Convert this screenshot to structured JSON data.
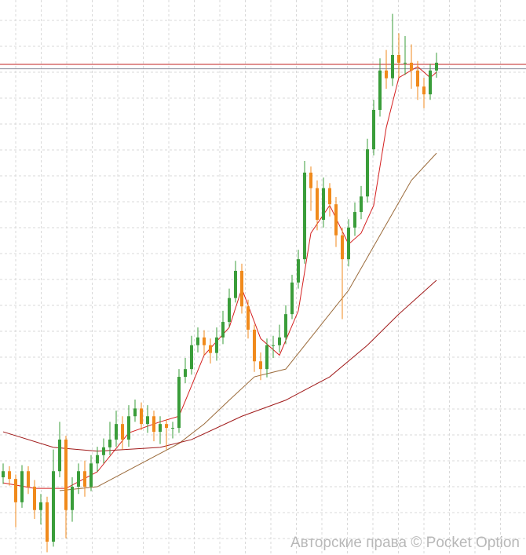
{
  "chart_data": {
    "type": "candlestick",
    "watermark": "Авторские права © Pocket Option",
    "ylim": [
      0,
      100
    ],
    "grid": true,
    "up_color": "#3a9d3a",
    "down_color": "#f08a1c",
    "open": [
      14.0,
      15.1,
      13.7,
      9.5,
      15.1,
      12.3,
      8.1,
      9.5,
      2.4,
      15.1,
      20.8,
      8.1,
      12.3,
      15.1,
      12.3,
      16.5,
      18.0,
      19.4,
      20.8,
      23.6,
      20.8,
      25.0,
      26.4,
      23.6,
      25.0,
      22.2,
      23.6,
      22.9,
      22.9,
      32.1,
      33.5,
      37.8,
      39.2,
      37.8,
      36.4,
      39.2,
      42.0,
      46.3,
      51.2,
      44.8,
      40.6,
      34.9,
      33.5,
      37.8,
      37.8,
      39.2,
      43.4,
      49.1,
      53.3,
      68.9,
      66.1,
      60.4,
      66.1,
      63.2,
      57.6,
      53.3,
      59.0,
      61.8,
      64.6,
      73.1,
      80.2,
      87.3,
      85.9,
      90.1,
      88.7,
      88.7,
      87.3,
      84.4,
      83.0,
      87.3
    ],
    "high": [
      16.5,
      16.0,
      14.5,
      16.2,
      16.0,
      13.5,
      11.0,
      10.5,
      19.0,
      24.0,
      21.5,
      14.0,
      16.5,
      17.0,
      18.0,
      19.5,
      21.0,
      24.0,
      26.0,
      25.0,
      27.0,
      28.0,
      27.5,
      27.0,
      26.0,
      25.0,
      24.5,
      24.0,
      33.5,
      35.5,
      39.5,
      41.0,
      40.5,
      39.0,
      41.0,
      44.0,
      48.0,
      53.0,
      52.5,
      46.0,
      41.5,
      36.5,
      39.0,
      39.5,
      41.5,
      45.0,
      50.5,
      55.0,
      71.0,
      70.0,
      67.5,
      68.0,
      67.0,
      64.5,
      59.0,
      60.5,
      63.5,
      66.5,
      75.0,
      82.0,
      89.5,
      91.0,
      97.5,
      94.0,
      93.5,
      92.0,
      89.0,
      86.0,
      88.5,
      90.5
    ],
    "low": [
      12.8,
      12.5,
      5.0,
      8.5,
      11.0,
      6.5,
      5.5,
      0.5,
      1.5,
      14.0,
      3.0,
      6.0,
      11.0,
      10.5,
      11.5,
      15.0,
      16.5,
      18.0,
      19.5,
      19.0,
      19.5,
      24.0,
      22.5,
      22.0,
      20.5,
      20.0,
      19.0,
      21.0,
      22.0,
      31.0,
      32.5,
      36.5,
      36.0,
      34.5,
      35.0,
      38.0,
      41.0,
      45.5,
      43.5,
      39.0,
      33.0,
      31.5,
      32.0,
      35.5,
      36.5,
      38.0,
      42.5,
      48.0,
      52.5,
      62.0,
      58.5,
      59.0,
      61.0,
      55.5,
      42.5,
      52.0,
      57.5,
      60.5,
      63.5,
      72.0,
      79.0,
      84.0,
      84.5,
      86.0,
      86.5,
      84.0,
      82.0,
      80.5,
      82.0,
      86.0
    ],
    "close": [
      15.1,
      13.7,
      9.5,
      15.1,
      12.3,
      8.1,
      9.5,
      2.4,
      15.1,
      20.8,
      8.1,
      12.3,
      15.1,
      12.3,
      16.5,
      18.0,
      19.4,
      20.8,
      23.6,
      20.8,
      25.0,
      26.4,
      23.6,
      25.0,
      22.2,
      23.6,
      22.9,
      22.9,
      32.1,
      33.5,
      37.8,
      39.2,
      37.8,
      36.4,
      39.2,
      42.0,
      46.3,
      51.2,
      44.8,
      40.6,
      34.9,
      33.5,
      37.8,
      37.8,
      39.2,
      43.4,
      49.1,
      53.3,
      68.9,
      66.1,
      60.4,
      66.1,
      63.2,
      57.6,
      53.3,
      59.0,
      61.8,
      64.6,
      73.1,
      80.2,
      87.3,
      85.9,
      90.1,
      88.7,
      88.7,
      87.3,
      84.4,
      83.0,
      87.3,
      88.7
    ],
    "lines": [
      {
        "color": "#d42020",
        "x": [
          0,
          5,
          10,
          15,
          20,
          25,
          28,
          32,
          36,
          38,
          41,
          44,
          47,
          49,
          52,
          55,
          57,
          59,
          61,
          63,
          66,
          68,
          69
        ],
        "values": [
          13,
          12,
          12,
          15,
          22,
          24,
          25,
          36,
          41,
          48,
          39,
          36,
          44,
          58,
          63,
          56,
          58,
          63,
          77,
          86,
          88,
          86,
          87
        ]
      },
      {
        "color": "#9a6a3a",
        "x": [
          9,
          15,
          22,
          28,
          32,
          36,
          40,
          45,
          50,
          55,
          60,
          65,
          69
        ],
        "values": [
          11.6,
          12.3,
          16.5,
          20.1,
          23.6,
          27.9,
          32.1,
          33.5,
          40.6,
          47.7,
          57.6,
          67.5,
          72.4
        ]
      },
      {
        "color": "#a01a1a",
        "x": [
          0,
          8,
          15,
          25,
          30,
          38,
          45,
          52,
          58,
          63,
          69
        ],
        "values": [
          22.2,
          19.4,
          18.7,
          19.4,
          20.8,
          25.0,
          27.9,
          32.1,
          37.8,
          43.4,
          49.5
        ]
      }
    ],
    "levels": [
      {
        "value": 88.4,
        "color": "#c02020"
      },
      {
        "value": 87.6,
        "color": "#8a8a9a"
      }
    ]
  }
}
